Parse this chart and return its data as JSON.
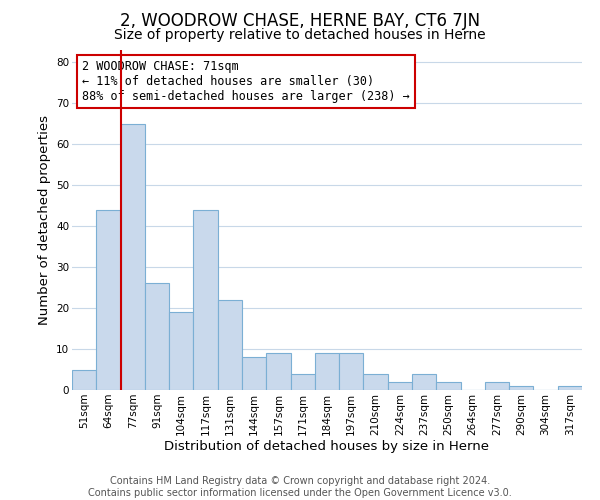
{
  "title": "2, WOODROW CHASE, HERNE BAY, CT6 7JN",
  "subtitle": "Size of property relative to detached houses in Herne",
  "xlabel": "Distribution of detached houses by size in Herne",
  "ylabel": "Number of detached properties",
  "footer_line1": "Contains HM Land Registry data © Crown copyright and database right 2024.",
  "footer_line2": "Contains public sector information licensed under the Open Government Licence v3.0.",
  "bar_labels": [
    "51sqm",
    "64sqm",
    "77sqm",
    "91sqm",
    "104sqm",
    "117sqm",
    "131sqm",
    "144sqm",
    "157sqm",
    "171sqm",
    "184sqm",
    "197sqm",
    "210sqm",
    "224sqm",
    "237sqm",
    "250sqm",
    "264sqm",
    "277sqm",
    "290sqm",
    "304sqm",
    "317sqm"
  ],
  "bar_values": [
    5,
    44,
    65,
    26,
    19,
    44,
    22,
    8,
    9,
    4,
    9,
    9,
    4,
    2,
    4,
    2,
    0,
    2,
    1,
    0,
    1
  ],
  "bar_color": "#c9d9ec",
  "bar_edge_color": "#7bafd4",
  "ylim": [
    0,
    83
  ],
  "yticks": [
    0,
    10,
    20,
    30,
    40,
    50,
    60,
    70,
    80
  ],
  "vline_color": "#cc0000",
  "annotation_title": "2 WOODROW CHASE: 71sqm",
  "annotation_line1": "← 11% of detached houses are smaller (30)",
  "annotation_line2": "88% of semi-detached houses are larger (238) →",
  "annotation_box_color": "#cc0000",
  "bg_color": "#ffffff",
  "grid_color": "#c8d8e8",
  "title_fontsize": 12,
  "subtitle_fontsize": 10,
  "tick_fontsize": 7.5,
  "label_fontsize": 9.5,
  "footer_fontsize": 7,
  "ann_fontsize": 8.5
}
